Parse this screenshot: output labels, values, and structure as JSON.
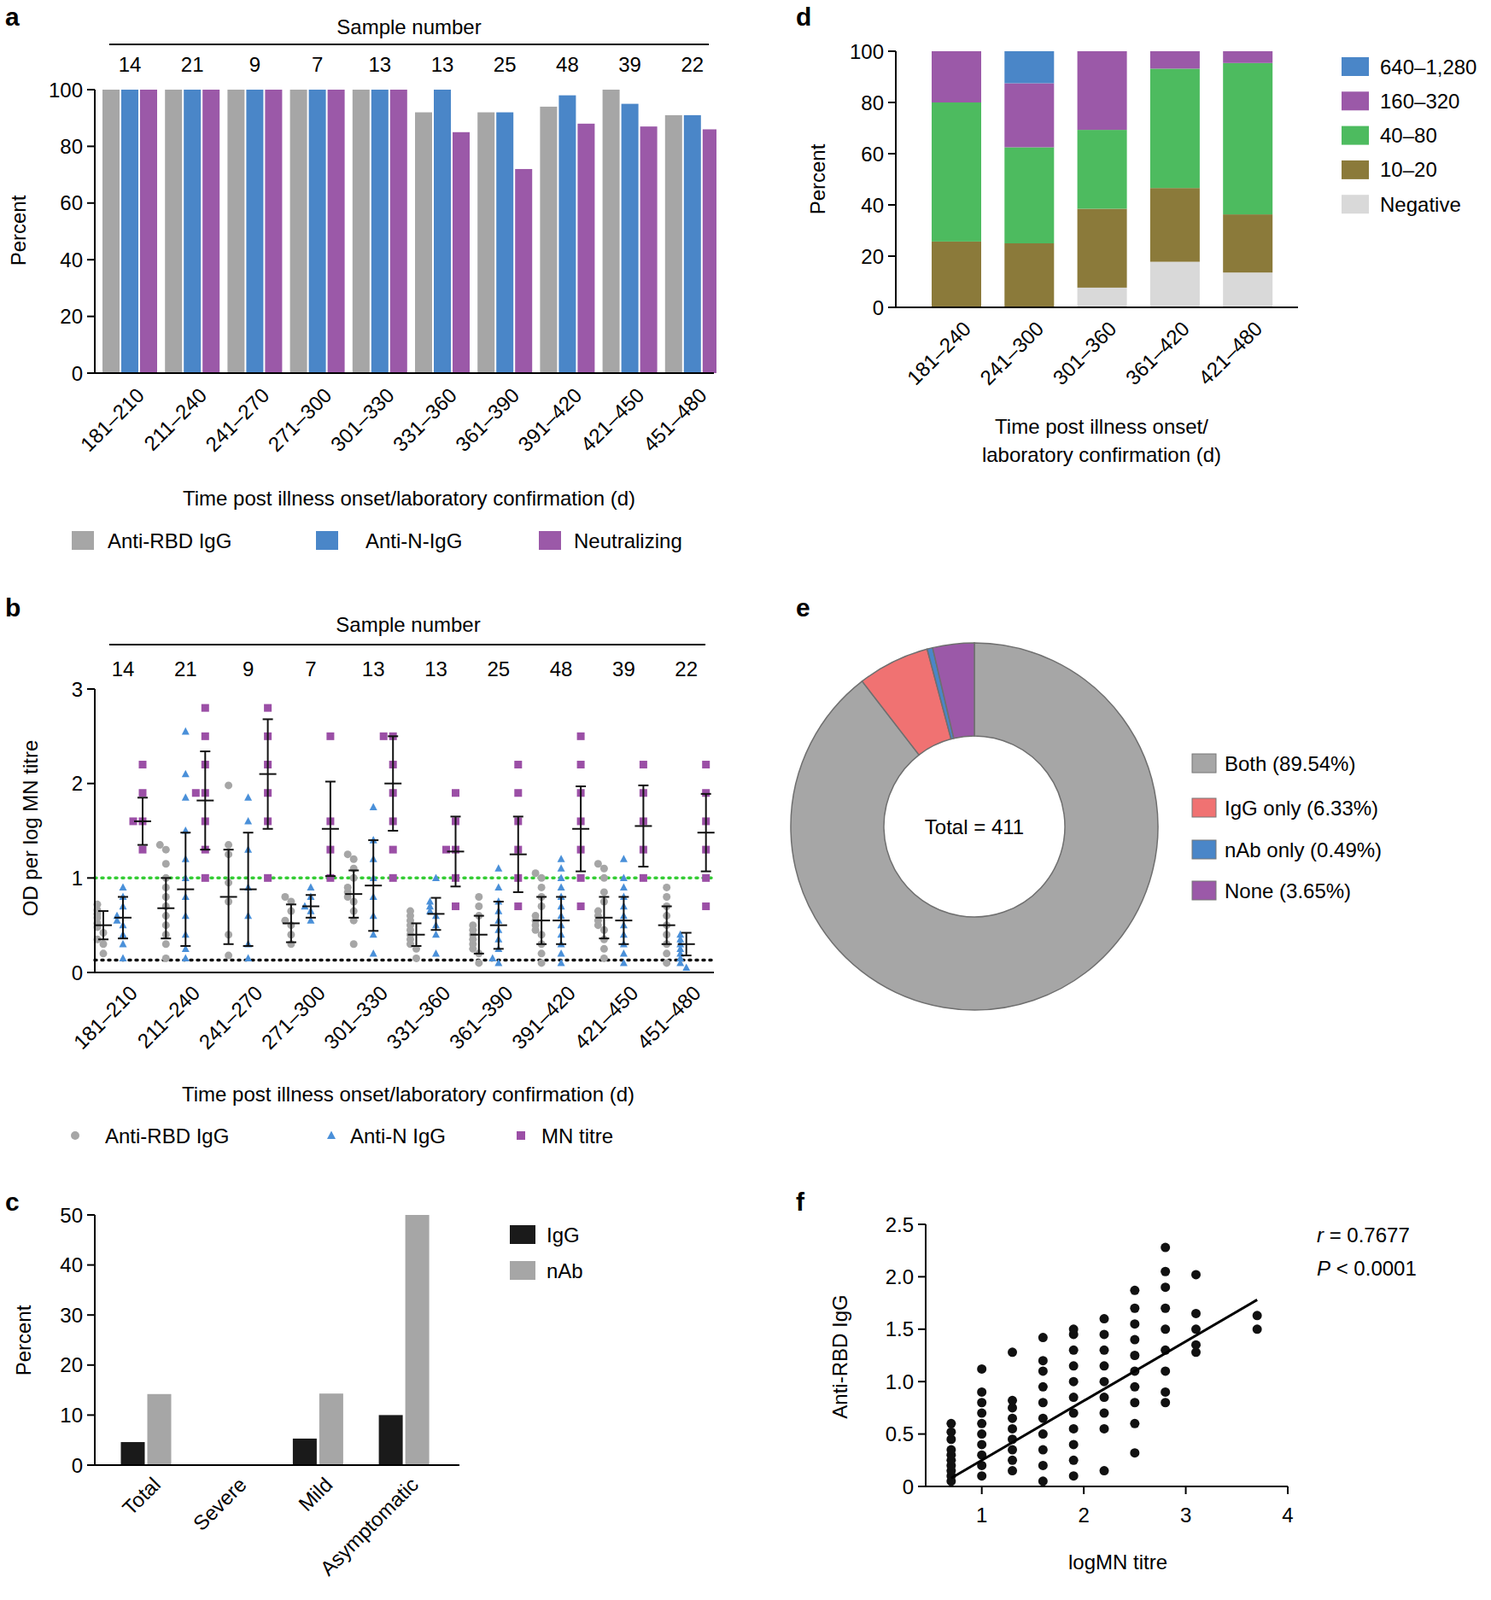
{
  "chart_data": [
    {
      "type": "bar",
      "panel_label": "a",
      "header": "Sample number",
      "sample_numbers": [
        14,
        21,
        9,
        7,
        13,
        13,
        25,
        48,
        39,
        22
      ],
      "categories": [
        "181–210",
        "211–240",
        "241–270",
        "271–300",
        "301–330",
        "331–360",
        "361–390",
        "391–420",
        "421–450",
        "451–480"
      ],
      "xlabel": "Time post illness onset/laboratory confirmation (d)",
      "ylabel": "Percent",
      "ylim": [
        0,
        100
      ],
      "yticks": [
        0,
        20,
        40,
        60,
        80,
        100
      ],
      "legend": "bottom",
      "series": [
        {
          "name": "Anti-RBD IgG",
          "color": "#a6a6a6",
          "values": [
            100,
            100,
            100,
            100,
            100,
            92,
            92,
            94,
            100,
            91
          ]
        },
        {
          "name": "Anti-N-IgG",
          "color": "#4a86c8",
          "values": [
            100,
            100,
            100,
            100,
            100,
            100,
            92,
            98,
            95,
            91
          ]
        },
        {
          "name": "Neutralizing",
          "color": "#9b59a8",
          "values": [
            100,
            100,
            100,
            100,
            100,
            85,
            72,
            88,
            87,
            86
          ]
        }
      ]
    },
    {
      "type": "dot",
      "panel_label": "b",
      "header": "Sample number",
      "sample_numbers": [
        14,
        21,
        9,
        7,
        13,
        13,
        25,
        48,
        39,
        22
      ],
      "categories": [
        "181–210",
        "211–240",
        "241–270",
        "271–300",
        "301–330",
        "331–360",
        "361–390",
        "391–420",
        "421–450",
        "451–480"
      ],
      "xlabel": "Time post illness onset/laboratory confirmation (d)",
      "ylabel": "OD per log MN titre",
      "ylim": [
        0,
        3
      ],
      "yticks": [
        0,
        1,
        2,
        3
      ],
      "legend": "bottom",
      "reference_lines": [
        {
          "value": 1,
          "color": "#33cc33"
        },
        {
          "value": 0.13,
          "color": "#111111"
        }
      ],
      "series": [
        {
          "name": "Anti-RBD IgG",
          "color": "#a6a6a6",
          "marker": "circle",
          "points": [
            [
              0.2,
              0.3,
              0.35,
              0.42,
              0.48,
              0.52,
              0.58,
              0.62,
              0.66,
              0.72
            ],
            [
              0.15,
              0.3,
              0.4,
              0.5,
              0.6,
              0.7,
              0.8,
              0.9,
              1.0,
              1.15,
              1.3,
              1.35
            ],
            [
              0.18,
              0.4,
              0.75,
              0.95,
              1.25,
              1.35,
              1.98
            ],
            [
              0.3,
              0.4,
              0.5,
              0.55,
              0.65,
              0.75,
              0.8
            ],
            [
              0.3,
              0.55,
              0.65,
              0.75,
              0.8,
              0.85,
              0.9,
              1.0,
              1.1,
              1.2,
              1.25
            ],
            [
              0.15,
              0.25,
              0.3,
              0.35,
              0.4,
              0.45,
              0.5,
              0.55,
              0.6,
              0.65
            ],
            [
              0.1,
              0.2,
              0.25,
              0.3,
              0.35,
              0.4,
              0.45,
              0.5,
              0.6,
              0.7,
              0.8
            ],
            [
              0.1,
              0.2,
              0.3,
              0.4,
              0.45,
              0.5,
              0.55,
              0.6,
              0.7,
              0.8,
              0.9,
              1.0,
              1.05
            ],
            [
              0.15,
              0.25,
              0.35,
              0.45,
              0.5,
              0.55,
              0.6,
              0.65,
              0.75,
              0.85,
              1.0,
              1.1,
              1.15
            ],
            [
              0.1,
              0.2,
              0.3,
              0.4,
              0.5,
              0.6,
              0.7,
              0.8,
              0.9
            ]
          ],
          "mean": [
            0.5,
            0.68,
            0.8,
            0.52,
            0.83,
            0.4,
            0.4,
            0.55,
            0.58,
            0.5
          ],
          "sd": [
            0.15,
            0.32,
            0.5,
            0.2,
            0.25,
            0.12,
            0.2,
            0.25,
            0.22,
            0.2
          ]
        },
        {
          "name": "Anti-N IgG",
          "color": "#4a90d9",
          "marker": "triangle",
          "points": [
            [
              0.15,
              0.3,
              0.4,
              0.5,
              0.55,
              0.6,
              0.7,
              0.8,
              0.9
            ],
            [
              0.15,
              0.25,
              0.4,
              0.6,
              0.8,
              1.0,
              1.2,
              1.5,
              1.85,
              2.1,
              2.55
            ],
            [
              0.15,
              0.3,
              0.6,
              0.9,
              1.3,
              1.6,
              1.85
            ],
            [
              0.55,
              0.65,
              0.7,
              0.8,
              0.9
            ],
            [
              0.2,
              0.4,
              0.6,
              0.8,
              1.0,
              1.2,
              1.4,
              1.75
            ],
            [
              0.2,
              0.4,
              0.5,
              0.6,
              0.65,
              0.7,
              0.75,
              1.0
            ],
            [
              0.1,
              0.15,
              0.25,
              0.35,
              0.45,
              0.55,
              0.65,
              0.75,
              0.9,
              1.1
            ],
            [
              0.1,
              0.2,
              0.3,
              0.4,
              0.5,
              0.6,
              0.7,
              0.8,
              0.9,
              1.0,
              1.1,
              1.2
            ],
            [
              0.1,
              0.2,
              0.3,
              0.4,
              0.5,
              0.6,
              0.7,
              0.8,
              0.9,
              1.0,
              1.2
            ],
            [
              0.05,
              0.1,
              0.15,
              0.2,
              0.25,
              0.3,
              0.35,
              0.4
            ]
          ],
          "mean": [
            0.58,
            0.88,
            0.88,
            0.7,
            0.92,
            0.62,
            0.5,
            0.55,
            0.55,
            0.3
          ],
          "sd": [
            0.22,
            0.6,
            0.6,
            0.12,
            0.48,
            0.17,
            0.25,
            0.25,
            0.25,
            0.12
          ]
        },
        {
          "name": "MN titre",
          "color": "#9b4fa6",
          "marker": "square",
          "points": [
            [
              2.2,
              1.9,
              1.6,
              1.6,
              1.3
            ],
            [
              2.8,
              2.5,
              2.2,
              1.9,
              1.9,
              1.6,
              1.3,
              1.0
            ],
            [
              2.8,
              2.5,
              2.2,
              1.9,
              1.6,
              1.0
            ],
            [
              2.5,
              1.6,
              1.3,
              1.0
            ],
            [
              2.5,
              2.5,
              2.2,
              1.9,
              1.6,
              1.3,
              1.0
            ],
            [
              1.9,
              1.6,
              1.3,
              1.3,
              1.0,
              0.7
            ],
            [
              2.2,
              1.9,
              1.6,
              1.3,
              1.0,
              0.7
            ],
            [
              2.5,
              2.2,
              1.9,
              1.6,
              1.3,
              1.0,
              0.7
            ],
            [
              2.2,
              1.9,
              1.6,
              1.3,
              1.0
            ],
            [
              2.2,
              1.9,
              1.6,
              1.3,
              1.0,
              0.7
            ]
          ],
          "mean": [
            1.6,
            1.82,
            2.1,
            1.52,
            2.0,
            1.28,
            1.25,
            1.52,
            1.55,
            1.48
          ],
          "sd": [
            0.25,
            0.52,
            0.58,
            0.5,
            0.5,
            0.37,
            0.4,
            0.45,
            0.43,
            0.41
          ]
        }
      ]
    },
    {
      "type": "bar",
      "panel_label": "c",
      "categories": [
        "Total",
        "Severe",
        "Mild",
        "Asymptomatic"
      ],
      "ylabel": "Percent",
      "ylim": [
        0,
        50
      ],
      "yticks": [
        0,
        10,
        20,
        30,
        40,
        50
      ],
      "legend": "right",
      "series": [
        {
          "name": "IgG",
          "color": "#1a1a1a",
          "values": [
            4.6,
            0,
            5.3,
            10
          ]
        },
        {
          "name": "nAb",
          "color": "#a6a6a6",
          "values": [
            14.2,
            0,
            14.3,
            50
          ]
        }
      ]
    },
    {
      "type": "bar",
      "panel_label": "d",
      "stacked": true,
      "categories": [
        "181–240",
        "241–300",
        "301–360",
        "361–420",
        "421–480"
      ],
      "xlabel": [
        "Time post illness onset/",
        "laboratory confirmation (d)"
      ],
      "ylabel": "Percent",
      "ylim": [
        0,
        100
      ],
      "yticks": [
        0,
        20,
        40,
        60,
        80,
        100
      ],
      "legend": "right",
      "series": [
        {
          "name": "Negative",
          "color": "#d9d9d9",
          "values": [
            0,
            0,
            7.7,
            17.8,
            13.6
          ]
        },
        {
          "name": "10–20",
          "color": "#8b7a3a",
          "values": [
            25.7,
            25,
            30.8,
            28.8,
            22.7
          ]
        },
        {
          "name": "40–80",
          "color": "#4dbb5f",
          "values": [
            54.3,
            37.5,
            30.8,
            46.6,
            59.1
          ]
        },
        {
          "name": "160–320",
          "color": "#9b59a8",
          "values": [
            20,
            25,
            30.7,
            6.8,
            4.6
          ]
        },
        {
          "name": "640–1,280",
          "color": "#4a86c8",
          "values": [
            0,
            12.5,
            0,
            0,
            0
          ]
        }
      ]
    },
    {
      "type": "donut",
      "panel_label": "e",
      "center_text": "Total = 411",
      "legend": "right",
      "labels": [
        "Both (89.54%)",
        "IgG only (6.33%)",
        "nAb only (0.49%)",
        "None (3.65%)"
      ],
      "values": [
        89.54,
        6.33,
        0.49,
        3.65
      ],
      "colors": [
        "#a6a6a6",
        "#f07272",
        "#4a86c8",
        "#9b59a8"
      ]
    },
    {
      "type": "scatter",
      "panel_label": "f",
      "xlabel": "logMN titre",
      "ylabel": "Anti-RBD IgG",
      "color": "#111111",
      "marker": "circle",
      "xlim": [
        0.45,
        4
      ],
      "xticks": [
        1,
        2,
        3,
        4
      ],
      "ylim": [
        0,
        2.5
      ],
      "yticks": [
        0,
        0.5,
        {
          "value": 1,
          "label": "1.0"
        },
        1.5,
        {
          "value": 2,
          "label": "2.0"
        },
        2.5
      ],
      "annotations": [
        "r = 0.7677",
        "P < 0.0001"
      ],
      "fit": {
        "x": [
          0.7,
          3.7
        ],
        "y": [
          0.08,
          1.78
        ]
      },
      "points": [
        [
          0.7,
          0.05
        ],
        [
          0.7,
          0.1
        ],
        [
          0.7,
          0.15
        ],
        [
          0.7,
          0.2
        ],
        [
          0.7,
          0.25
        ],
        [
          0.7,
          0.3
        ],
        [
          0.7,
          0.35
        ],
        [
          0.7,
          0.45
        ],
        [
          0.7,
          0.52
        ],
        [
          0.7,
          0.6
        ],
        [
          1.0,
          0.1
        ],
        [
          1.0,
          0.2
        ],
        [
          1.0,
          0.3
        ],
        [
          1.0,
          0.4
        ],
        [
          1.0,
          0.5
        ],
        [
          1.0,
          0.6
        ],
        [
          1.0,
          0.7
        ],
        [
          1.0,
          0.8
        ],
        [
          1.0,
          0.9
        ],
        [
          1.0,
          1.12
        ],
        [
          1.3,
          0.15
        ],
        [
          1.3,
          0.25
        ],
        [
          1.3,
          0.35
        ],
        [
          1.3,
          0.45
        ],
        [
          1.3,
          0.55
        ],
        [
          1.3,
          0.65
        ],
        [
          1.3,
          0.75
        ],
        [
          1.3,
          0.82
        ],
        [
          1.3,
          1.28
        ],
        [
          1.6,
          0.05
        ],
        [
          1.6,
          0.2
        ],
        [
          1.6,
          0.35
        ],
        [
          1.6,
          0.5
        ],
        [
          1.6,
          0.65
        ],
        [
          1.6,
          0.8
        ],
        [
          1.6,
          0.95
        ],
        [
          1.6,
          1.1
        ],
        [
          1.6,
          1.2
        ],
        [
          1.6,
          1.42
        ],
        [
          1.9,
          0.1
        ],
        [
          1.9,
          0.25
        ],
        [
          1.9,
          0.4
        ],
        [
          1.9,
          0.55
        ],
        [
          1.9,
          0.7
        ],
        [
          1.9,
          0.85
        ],
        [
          1.9,
          1.0
        ],
        [
          1.9,
          1.15
        ],
        [
          1.9,
          1.3
        ],
        [
          1.9,
          1.45
        ],
        [
          1.9,
          1.5
        ],
        [
          2.2,
          0.15
        ],
        [
          2.2,
          0.55
        ],
        [
          2.2,
          0.7
        ],
        [
          2.2,
          0.85
        ],
        [
          2.2,
          1.0
        ],
        [
          2.2,
          1.15
        ],
        [
          2.2,
          1.3
        ],
        [
          2.2,
          1.45
        ],
        [
          2.2,
          1.6
        ],
        [
          2.5,
          0.32
        ],
        [
          2.5,
          0.6
        ],
        [
          2.5,
          0.8
        ],
        [
          2.5,
          0.95
        ],
        [
          2.5,
          1.1
        ],
        [
          2.5,
          1.25
        ],
        [
          2.5,
          1.4
        ],
        [
          2.5,
          1.55
        ],
        [
          2.5,
          1.7
        ],
        [
          2.5,
          1.87
        ],
        [
          2.8,
          0.8
        ],
        [
          2.8,
          0.9
        ],
        [
          2.8,
          1.1
        ],
        [
          2.8,
          1.3
        ],
        [
          2.8,
          1.5
        ],
        [
          2.8,
          1.7
        ],
        [
          2.8,
          1.9
        ],
        [
          2.8,
          2.05
        ],
        [
          2.8,
          2.28
        ],
        [
          3.1,
          1.28
        ],
        [
          3.1,
          1.35
        ],
        [
          3.1,
          1.5
        ],
        [
          3.1,
          1.65
        ],
        [
          3.1,
          2.02
        ],
        [
          3.7,
          1.5
        ],
        [
          3.7,
          1.63
        ]
      ]
    }
  ]
}
